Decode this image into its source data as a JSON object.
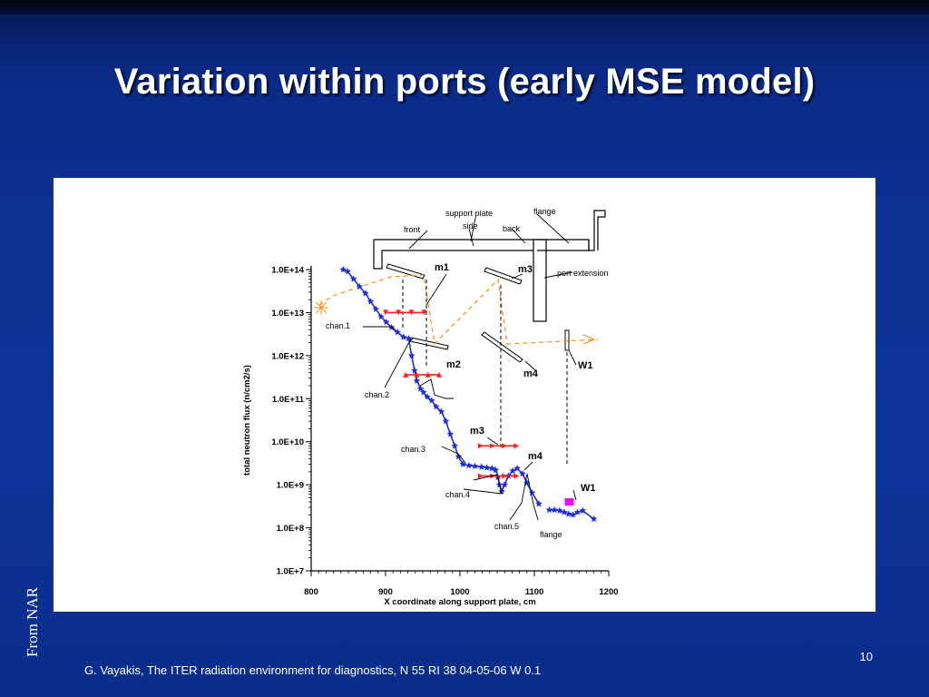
{
  "slide": {
    "title": "Variation within ports (early MSE model)",
    "side_label": "From NAR",
    "slide_number": "10",
    "footer": "G. Vayakis, The ITER radiation environment for diagnostics, N 55 RI 38 04-05-06 W 0.1"
  },
  "chart_data": {
    "type": "scatter",
    "xlabel": "X coordinate along support plate, cm",
    "ylabel": "total neutron flux (n/cm2/s)",
    "xlim": [
      800,
      1200
    ],
    "ylim": [
      10000000.0,
      100000000000000.0
    ],
    "y_scale": "log",
    "x_ticks": [
      "800",
      "900",
      "1000",
      "1100",
      "1200"
    ],
    "y_ticks": [
      "1.0E+7",
      "1.0E+8",
      "1.0E+9",
      "1.0E+10",
      "1.0E+11",
      "1.0E+12",
      "1.0E+13",
      "1.0E+14"
    ],
    "grid": false,
    "series": [
      {
        "color": "#1a2ce0",
        "x": [
          843,
          849,
          857,
          865,
          873,
          880,
          887,
          894,
          901,
          908,
          916,
          924,
          931,
          935,
          939,
          942,
          947,
          951,
          956,
          962,
          968,
          975,
          981,
          987,
          993,
          998,
          1004,
          1012,
          1020,
          1029,
          1036,
          1043,
          1048,
          1051,
          1053,
          1056,
          1060,
          1065,
          1071,
          1077,
          1084,
          1090,
          1097,
          1106
        ],
        "y": [
          100000000000000.0,
          90000000000000.0,
          60000000000000.0,
          40000000000000.0,
          28000000000000.0,
          18000000000000.0,
          12000000000000.0,
          8000000000000.0,
          6000000000000.0,
          4500000000000.0,
          3500000000000.0,
          2700000000000.0,
          2500000000000.0,
          1000000000000.0,
          450000000000.0,
          260000000000.0,
          170000000000.0,
          140000000000.0,
          110000000000.0,
          90000000000.0,
          65000000000.0,
          50000000000.0,
          30000000000.0,
          15000000000.0,
          8000000000.0,
          4500000000.0,
          3000000000.0,
          2800000000.0,
          2700000000.0,
          2600000000.0,
          2500000000.0,
          2400000000.0,
          2200000000.0,
          1500000000.0,
          1000000000.0,
          700000000.0,
          1000000000.0,
          1600000000.0,
          2100000000.0,
          2400000000.0,
          1800000000.0,
          1100000000.0,
          650000000.0,
          360000000.0
        ]
      },
      {
        "color": "#1a2ce0",
        "x": [
          1120,
          1127,
          1134,
          1140,
          1146,
          1152,
          1158,
          1165,
          1180
        ],
        "y": [
          260000000.0,
          260000000.0,
          250000000.0,
          230000000.0,
          210000000.0,
          200000000.0,
          230000000.0,
          250000000.0,
          160000000.0
        ]
      }
    ],
    "intervals": [
      {
        "label": "m1",
        "x": [
          900,
          952
        ],
        "y": 10000000000000.0,
        "color": "#ff2020"
      },
      {
        "label": "m2",
        "x": [
          927,
          972
        ],
        "y": 360000000000.0,
        "color": "#ff2020"
      },
      {
        "label": "m3",
        "x": [
          1028,
          1076
        ],
        "y": 8000000000.0,
        "color": "#ff2020"
      },
      {
        "label": "m4",
        "x": [
          1028,
          1076
        ],
        "y": 1600000000.0,
        "color": "#ff2020"
      }
    ],
    "markers": [
      {
        "label": "W1",
        "x": 1147,
        "y": 400000000.0,
        "color": "#ff00ff"
      }
    ],
    "annotations": {
      "channels": [
        "chan.1",
        "chan.2",
        "chan.3",
        "chan.4",
        "chan.5",
        "flange"
      ],
      "diagram": [
        "support plate",
        "flange",
        "front",
        "side",
        "back",
        "port extension",
        "m1",
        "m2",
        "m3",
        "m4",
        "W1"
      ]
    }
  }
}
